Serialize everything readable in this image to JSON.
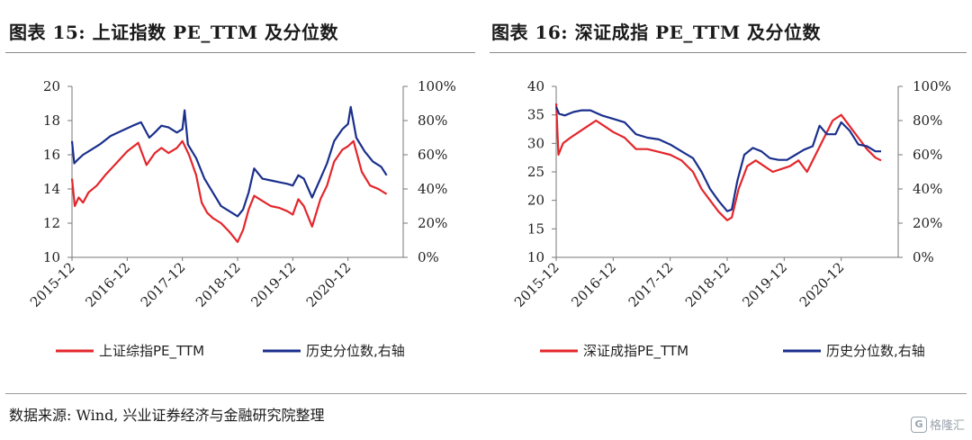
{
  "figures": [
    {
      "title": "图表 15:  上证指数 PE_TTM 及分位数"
    },
    {
      "title": "图表 16:  深证成指 PE_TTM 及分位数"
    }
  ],
  "source": "数据来源:  Wind,  兴业证券经济与金融研究院整理",
  "watermark": "格隆汇",
  "colors": {
    "pe": "#e3262b",
    "pct": "#1a2f8c"
  },
  "chart_data": [
    {
      "type": "line",
      "title": "图表 15:  上证指数 PE_TTM 及分位数",
      "categories": [
        "2015-12",
        "2016-12",
        "2017-12",
        "2018-12",
        "2019-12",
        "2020-12"
      ],
      "y_left": {
        "lim": [
          10,
          20
        ],
        "ticks": [
          "10",
          "12",
          "14",
          "16",
          "18",
          "20"
        ]
      },
      "y_right": {
        "lim": [
          0,
          100
        ],
        "ticks": [
          "0%",
          "20%",
          "40%",
          "60%",
          "80%",
          "100%"
        ]
      },
      "x_range": [
        0,
        6
      ],
      "series": [
        {
          "name": "上证综指PE_TTM",
          "axis": "left",
          "color": "#e3262b",
          "x": [
            0.0,
            0.05,
            0.12,
            0.2,
            0.3,
            0.45,
            0.6,
            0.8,
            1.0,
            1.2,
            1.35,
            1.5,
            1.62,
            1.75,
            1.9,
            2.0,
            2.12,
            2.25,
            2.35,
            2.45,
            2.55,
            2.7,
            2.85,
            3.0,
            3.1,
            3.2,
            3.3,
            3.45,
            3.6,
            3.75,
            3.9,
            4.0,
            4.1,
            4.2,
            4.35,
            4.5,
            4.62,
            4.75,
            4.9,
            5.0,
            5.1,
            5.25,
            5.4,
            5.55,
            5.7
          ],
          "values": [
            14.6,
            13.0,
            13.5,
            13.2,
            13.8,
            14.2,
            14.8,
            15.5,
            16.2,
            16.7,
            15.4,
            16.1,
            16.4,
            16.1,
            16.4,
            16.8,
            16.0,
            14.8,
            13.2,
            12.6,
            12.3,
            12.0,
            11.5,
            10.9,
            11.6,
            12.8,
            13.6,
            13.3,
            13.0,
            12.9,
            12.7,
            12.5,
            13.4,
            13.0,
            11.8,
            13.4,
            14.2,
            15.6,
            16.3,
            16.5,
            16.8,
            15.0,
            14.2,
            14.0,
            13.7
          ]
        },
        {
          "name": "历史分位数,右轴",
          "axis": "right",
          "color": "#1a2f8c",
          "x": [
            0.0,
            0.04,
            0.1,
            0.2,
            0.35,
            0.5,
            0.7,
            0.9,
            1.1,
            1.25,
            1.4,
            1.5,
            1.62,
            1.75,
            1.9,
            2.0,
            2.04,
            2.1,
            2.25,
            2.4,
            2.55,
            2.7,
            2.85,
            3.0,
            3.1,
            3.2,
            3.3,
            3.45,
            3.6,
            3.75,
            3.9,
            4.0,
            4.1,
            4.2,
            4.35,
            4.5,
            4.62,
            4.75,
            4.9,
            5.0,
            5.05,
            5.15,
            5.3,
            5.45,
            5.6,
            5.7
          ],
          "values": [
            68,
            55,
            57,
            60,
            63,
            66,
            71,
            74,
            77,
            79,
            70,
            73,
            77,
            76,
            73,
            75,
            86,
            66,
            58,
            46,
            38,
            30,
            27,
            24,
            28,
            38,
            52,
            46,
            45,
            44,
            43,
            42,
            48,
            46,
            35,
            46,
            55,
            68,
            75,
            78,
            88,
            70,
            62,
            56,
            53,
            48
          ]
        }
      ]
    },
    {
      "type": "line",
      "title": "图表 16:  深证成指 PE_TTM 及分位数",
      "categories": [
        "2015-12",
        "2016-12",
        "2017-12",
        "2018-12",
        "2019-12",
        "2020-12"
      ],
      "y_left": {
        "lim": [
          10,
          40
        ],
        "ticks": [
          "10",
          "15",
          "20",
          "25",
          "30",
          "35",
          "40"
        ]
      },
      "y_right": {
        "lim": [
          0,
          100
        ],
        "ticks": [
          "0%",
          "20%",
          "40%",
          "60%",
          "80%",
          "100%"
        ]
      },
      "x_range": [
        0,
        6
      ],
      "series": [
        {
          "name": "深证成指PE_TTM",
          "axis": "left",
          "color": "#e3262b",
          "x": [
            0.0,
            0.04,
            0.12,
            0.25,
            0.4,
            0.55,
            0.7,
            0.85,
            1.0,
            1.2,
            1.4,
            1.6,
            1.8,
            2.0,
            2.2,
            2.4,
            2.55,
            2.7,
            2.85,
            3.0,
            3.08,
            3.2,
            3.35,
            3.5,
            3.65,
            3.8,
            3.95,
            4.1,
            4.25,
            4.4,
            4.55,
            4.7,
            4.85,
            5.0,
            5.15,
            5.3,
            5.45,
            5.6,
            5.7
          ],
          "values": [
            37,
            28,
            30,
            31,
            32,
            33,
            34,
            33,
            32,
            31,
            29,
            29,
            28.5,
            28,
            27,
            25,
            22,
            20,
            18,
            16.5,
            17,
            22,
            26,
            27,
            26,
            25,
            25.5,
            26,
            27,
            25,
            28,
            31,
            34,
            35,
            33,
            31,
            29,
            27.5,
            27
          ]
        },
        {
          "name": "历史分位数,右轴",
          "axis": "right",
          "color": "#1a2f8c",
          "x": [
            0.0,
            0.05,
            0.15,
            0.3,
            0.45,
            0.6,
            0.8,
            1.0,
            1.2,
            1.4,
            1.6,
            1.8,
            2.0,
            2.2,
            2.4,
            2.55,
            2.7,
            2.85,
            3.0,
            3.08,
            3.18,
            3.3,
            3.45,
            3.6,
            3.75,
            3.9,
            4.05,
            4.2,
            4.35,
            4.5,
            4.62,
            4.75,
            4.9,
            5.0,
            5.15,
            5.3,
            5.45,
            5.6,
            5.7
          ],
          "values": [
            88,
            84,
            83,
            85,
            86,
            86,
            83,
            81,
            79,
            72,
            70,
            69,
            66,
            62,
            58,
            50,
            40,
            33,
            27,
            28,
            45,
            60,
            64,
            62,
            58,
            57,
            57,
            60,
            63,
            65,
            77,
            72,
            72,
            79,
            74,
            66,
            65,
            62,
            62
          ]
        }
      ]
    }
  ]
}
